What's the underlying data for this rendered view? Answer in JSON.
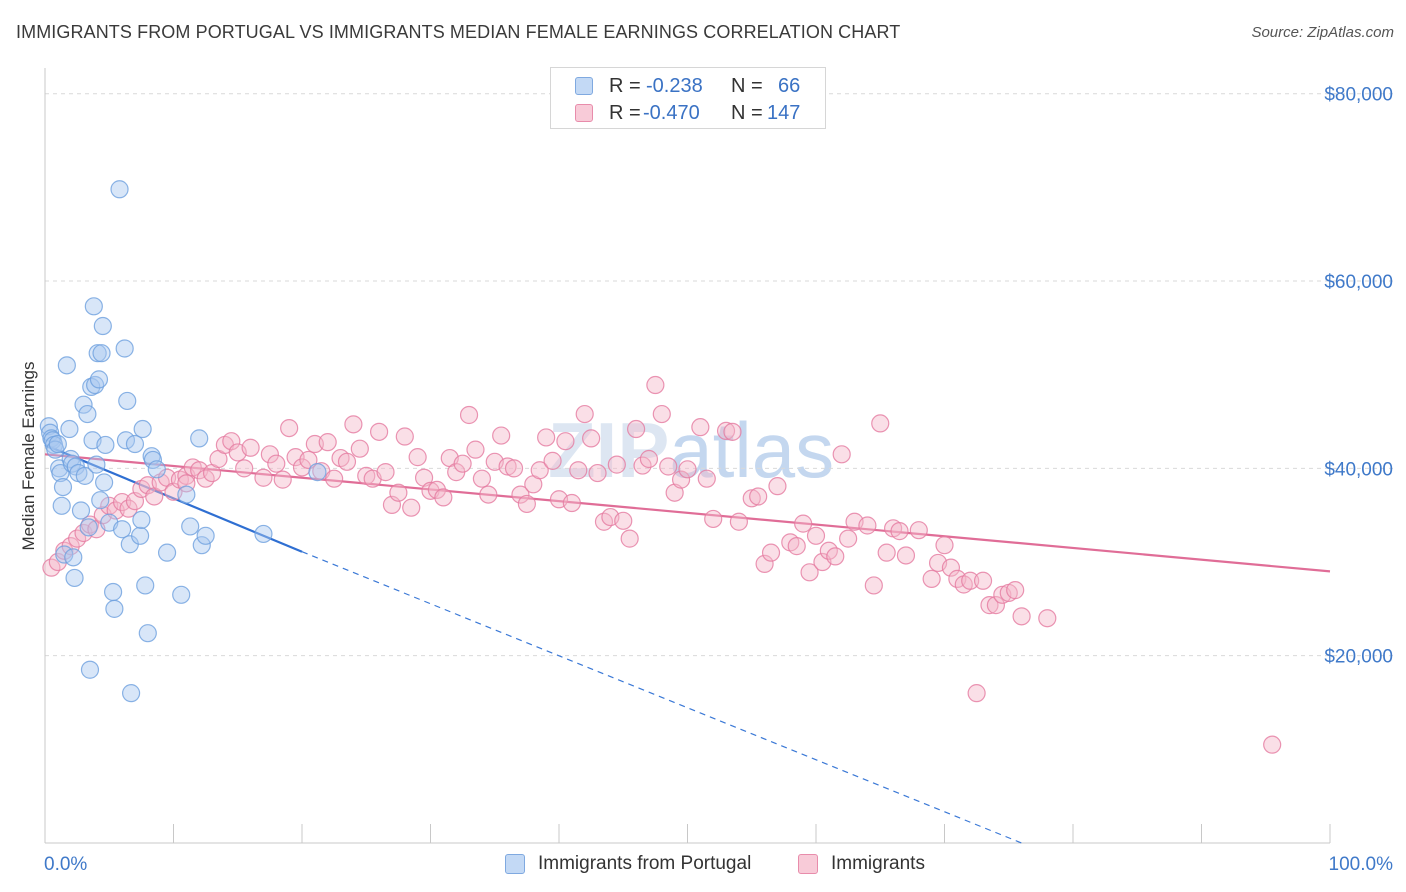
{
  "header": {
    "title": "IMMIGRANTS FROM PORTUGAL VS IMMIGRANTS MEDIAN FEMALE EARNINGS CORRELATION CHART",
    "source": "Source: ZipAtlas.com"
  },
  "watermark": {
    "zip": "ZIP",
    "atlas": "atlas"
  },
  "legend_top": {
    "rows": [
      {
        "r_label": "R =",
        "r_value": "-0.238",
        "n_label": "N =",
        "n_value": "66",
        "color": "#a9c8f0"
      },
      {
        "r_label": "R =",
        "r_value": "-0.470",
        "n_label": "N =",
        "n_value": "147",
        "color": "#f4b7c9"
      }
    ]
  },
  "legend_bottom": {
    "items": [
      {
        "label": "Immigrants from Portugal",
        "color": "#a9c8f0"
      },
      {
        "label": "Immigrants",
        "color": "#f4b7c9"
      }
    ]
  },
  "chart_data": {
    "type": "scatter",
    "title": "IMMIGRANTS FROM PORTUGAL VS IMMIGRANTS MEDIAN FEMALE EARNINGS CORRELATION CHART",
    "xlabel": "",
    "ylabel": "Median Female Earnings",
    "xlim": [
      0,
      100
    ],
    "ylim": [
      0,
      82000
    ],
    "x_tick_labels": [
      "0.0%",
      "100.0%"
    ],
    "y_ticks": [
      20000,
      40000,
      60000,
      80000
    ],
    "y_tick_labels": [
      "$20,000",
      "$40,000",
      "$60,000",
      "$80,000"
    ],
    "grid": true,
    "legend_position": "bottom",
    "series": [
      {
        "name": "Immigrants from Portugal",
        "color": "#6ea0df",
        "fill": "#a9c8f0",
        "trend": {
          "x": [
            0,
            20
          ],
          "y": [
            42500,
            31100
          ],
          "dashed_to": [
            76,
            0
          ]
        },
        "points": [
          [
            0.3,
            44500
          ],
          [
            0.4,
            43800
          ],
          [
            0.5,
            43200
          ],
          [
            0.6,
            43000
          ],
          [
            0.7,
            42500
          ],
          [
            0.8,
            42000
          ],
          [
            1.0,
            42600
          ],
          [
            1.1,
            40000
          ],
          [
            1.2,
            39500
          ],
          [
            1.3,
            36000
          ],
          [
            1.4,
            38000
          ],
          [
            1.5,
            30800
          ],
          [
            1.7,
            51000
          ],
          [
            1.9,
            44200
          ],
          [
            2.0,
            41000
          ],
          [
            2.1,
            40500
          ],
          [
            2.2,
            30500
          ],
          [
            2.3,
            28300
          ],
          [
            2.4,
            40200
          ],
          [
            2.6,
            39500
          ],
          [
            2.8,
            35500
          ],
          [
            3.0,
            46800
          ],
          [
            3.1,
            39200
          ],
          [
            3.3,
            45800
          ],
          [
            3.4,
            33700
          ],
          [
            3.5,
            18500
          ],
          [
            3.6,
            48700
          ],
          [
            3.7,
            43000
          ],
          [
            3.8,
            57300
          ],
          [
            3.9,
            48900
          ],
          [
            4.0,
            40400
          ],
          [
            4.1,
            52300
          ],
          [
            4.2,
            49500
          ],
          [
            4.3,
            36600
          ],
          [
            4.4,
            52300
          ],
          [
            4.5,
            55200
          ],
          [
            4.6,
            38500
          ],
          [
            4.7,
            42500
          ],
          [
            5.0,
            34200
          ],
          [
            5.3,
            26800
          ],
          [
            5.4,
            25000
          ],
          [
            5.8,
            69800
          ],
          [
            6.0,
            33500
          ],
          [
            6.2,
            52800
          ],
          [
            6.3,
            43000
          ],
          [
            6.4,
            47200
          ],
          [
            6.6,
            31900
          ],
          [
            6.7,
            16000
          ],
          [
            7.0,
            42600
          ],
          [
            7.4,
            32800
          ],
          [
            7.5,
            34500
          ],
          [
            7.6,
            44200
          ],
          [
            7.8,
            27500
          ],
          [
            8.0,
            22400
          ],
          [
            8.3,
            41300
          ],
          [
            8.4,
            40900
          ],
          [
            8.7,
            39900
          ],
          [
            9.5,
            31000
          ],
          [
            10.6,
            26500
          ],
          [
            11.0,
            37200
          ],
          [
            11.3,
            33800
          ],
          [
            12.0,
            43200
          ],
          [
            12.2,
            31800
          ],
          [
            12.5,
            32800
          ],
          [
            17.0,
            33000
          ],
          [
            21.2,
            39600
          ]
        ]
      },
      {
        "name": "Immigrants",
        "color": "#e57aa0",
        "fill": "#f4b7c9",
        "trend": {
          "x": [
            0,
            100
          ],
          "y": [
            41500,
            29000
          ]
        },
        "points": [
          [
            0.5,
            29400
          ],
          [
            1.0,
            30000
          ],
          [
            1.5,
            31200
          ],
          [
            2.0,
            31700
          ],
          [
            2.5,
            32500
          ],
          [
            3.0,
            33100
          ],
          [
            3.5,
            34000
          ],
          [
            4.0,
            33500
          ],
          [
            4.5,
            35000
          ],
          [
            5.0,
            36000
          ],
          [
            5.5,
            35500
          ],
          [
            6.0,
            36400
          ],
          [
            6.5,
            35700
          ],
          [
            7.0,
            36500
          ],
          [
            7.5,
            37800
          ],
          [
            8.0,
            38200
          ],
          [
            8.5,
            37000
          ],
          [
            9.0,
            38500
          ],
          [
            9.5,
            39000
          ],
          [
            10.0,
            37500
          ],
          [
            10.5,
            38800
          ],
          [
            11.0,
            39200
          ],
          [
            11.5,
            40100
          ],
          [
            12.0,
            39800
          ],
          [
            12.5,
            38900
          ],
          [
            13.0,
            39500
          ],
          [
            13.5,
            41000
          ],
          [
            14.0,
            42500
          ],
          [
            14.5,
            42900
          ],
          [
            15.0,
            41700
          ],
          [
            15.5,
            40000
          ],
          [
            16.0,
            42200
          ],
          [
            17.0,
            39000
          ],
          [
            17.5,
            41500
          ],
          [
            18.0,
            40500
          ],
          [
            18.5,
            38800
          ],
          [
            19.0,
            44300
          ],
          [
            19.5,
            41200
          ],
          [
            20.0,
            40100
          ],
          [
            20.5,
            40900
          ],
          [
            21.0,
            42600
          ],
          [
            21.5,
            39700
          ],
          [
            22.0,
            42800
          ],
          [
            22.5,
            38900
          ],
          [
            23.0,
            41100
          ],
          [
            23.5,
            40700
          ],
          [
            24.0,
            44700
          ],
          [
            24.5,
            42100
          ],
          [
            25.0,
            39200
          ],
          [
            25.5,
            38900
          ],
          [
            26.0,
            43900
          ],
          [
            26.5,
            39600
          ],
          [
            27.0,
            36100
          ],
          [
            27.5,
            37400
          ],
          [
            28.0,
            43400
          ],
          [
            28.5,
            35800
          ],
          [
            29.0,
            41200
          ],
          [
            29.5,
            39000
          ],
          [
            30.0,
            37600
          ],
          [
            30.5,
            37700
          ],
          [
            31.0,
            36900
          ],
          [
            31.5,
            41100
          ],
          [
            32.0,
            39600
          ],
          [
            32.5,
            40500
          ],
          [
            33.0,
            45700
          ],
          [
            33.5,
            42000
          ],
          [
            34.0,
            38900
          ],
          [
            34.5,
            37200
          ],
          [
            35.0,
            40700
          ],
          [
            35.5,
            43500
          ],
          [
            36.0,
            40200
          ],
          [
            36.5,
            40000
          ],
          [
            37.0,
            37200
          ],
          [
            37.5,
            36200
          ],
          [
            38.0,
            38300
          ],
          [
            38.5,
            39800
          ],
          [
            39.0,
            43300
          ],
          [
            39.5,
            40800
          ],
          [
            40.0,
            36700
          ],
          [
            40.5,
            42900
          ],
          [
            41.0,
            36300
          ],
          [
            41.5,
            39800
          ],
          [
            42.0,
            45800
          ],
          [
            42.5,
            43200
          ],
          [
            43.0,
            39500
          ],
          [
            43.5,
            34300
          ],
          [
            44.0,
            34800
          ],
          [
            44.5,
            40400
          ],
          [
            45.0,
            34400
          ],
          [
            45.5,
            32500
          ],
          [
            46.0,
            44200
          ],
          [
            46.5,
            40300
          ],
          [
            47.0,
            41000
          ],
          [
            47.5,
            48900
          ],
          [
            48.0,
            45800
          ],
          [
            48.5,
            40200
          ],
          [
            49.0,
            37400
          ],
          [
            49.5,
            38800
          ],
          [
            50.0,
            39900
          ],
          [
            51.0,
            44400
          ],
          [
            51.5,
            38900
          ],
          [
            52.0,
            34600
          ],
          [
            53.0,
            44000
          ],
          [
            53.5,
            43900
          ],
          [
            54.0,
            34300
          ],
          [
            55.0,
            36800
          ],
          [
            55.5,
            37000
          ],
          [
            56.0,
            29800
          ],
          [
            56.5,
            31000
          ],
          [
            57.0,
            38100
          ],
          [
            58.0,
            32100
          ],
          [
            58.5,
            31700
          ],
          [
            59.0,
            34100
          ],
          [
            59.5,
            28900
          ],
          [
            60.0,
            32800
          ],
          [
            60.5,
            30000
          ],
          [
            61.0,
            31200
          ],
          [
            61.5,
            30600
          ],
          [
            62.0,
            41500
          ],
          [
            62.5,
            32500
          ],
          [
            63.0,
            34300
          ],
          [
            64.0,
            33900
          ],
          [
            64.5,
            27500
          ],
          [
            65.0,
            44800
          ],
          [
            65.5,
            31000
          ],
          [
            66.0,
            33600
          ],
          [
            66.5,
            33300
          ],
          [
            67.0,
            30700
          ],
          [
            68.0,
            33400
          ],
          [
            69.0,
            28200
          ],
          [
            69.5,
            29900
          ],
          [
            70.0,
            31800
          ],
          [
            70.5,
            29400
          ],
          [
            71.0,
            28200
          ],
          [
            71.5,
            27600
          ],
          [
            72.0,
            28000
          ],
          [
            72.5,
            16000
          ],
          [
            73.0,
            28000
          ],
          [
            73.5,
            25400
          ],
          [
            74.0,
            25400
          ],
          [
            74.5,
            26500
          ],
          [
            75.0,
            26700
          ],
          [
            75.5,
            27000
          ],
          [
            76.0,
            24200
          ],
          [
            78.0,
            24000
          ],
          [
            95.5,
            10500
          ],
          [
            11.0,
            38400
          ]
        ]
      }
    ]
  }
}
